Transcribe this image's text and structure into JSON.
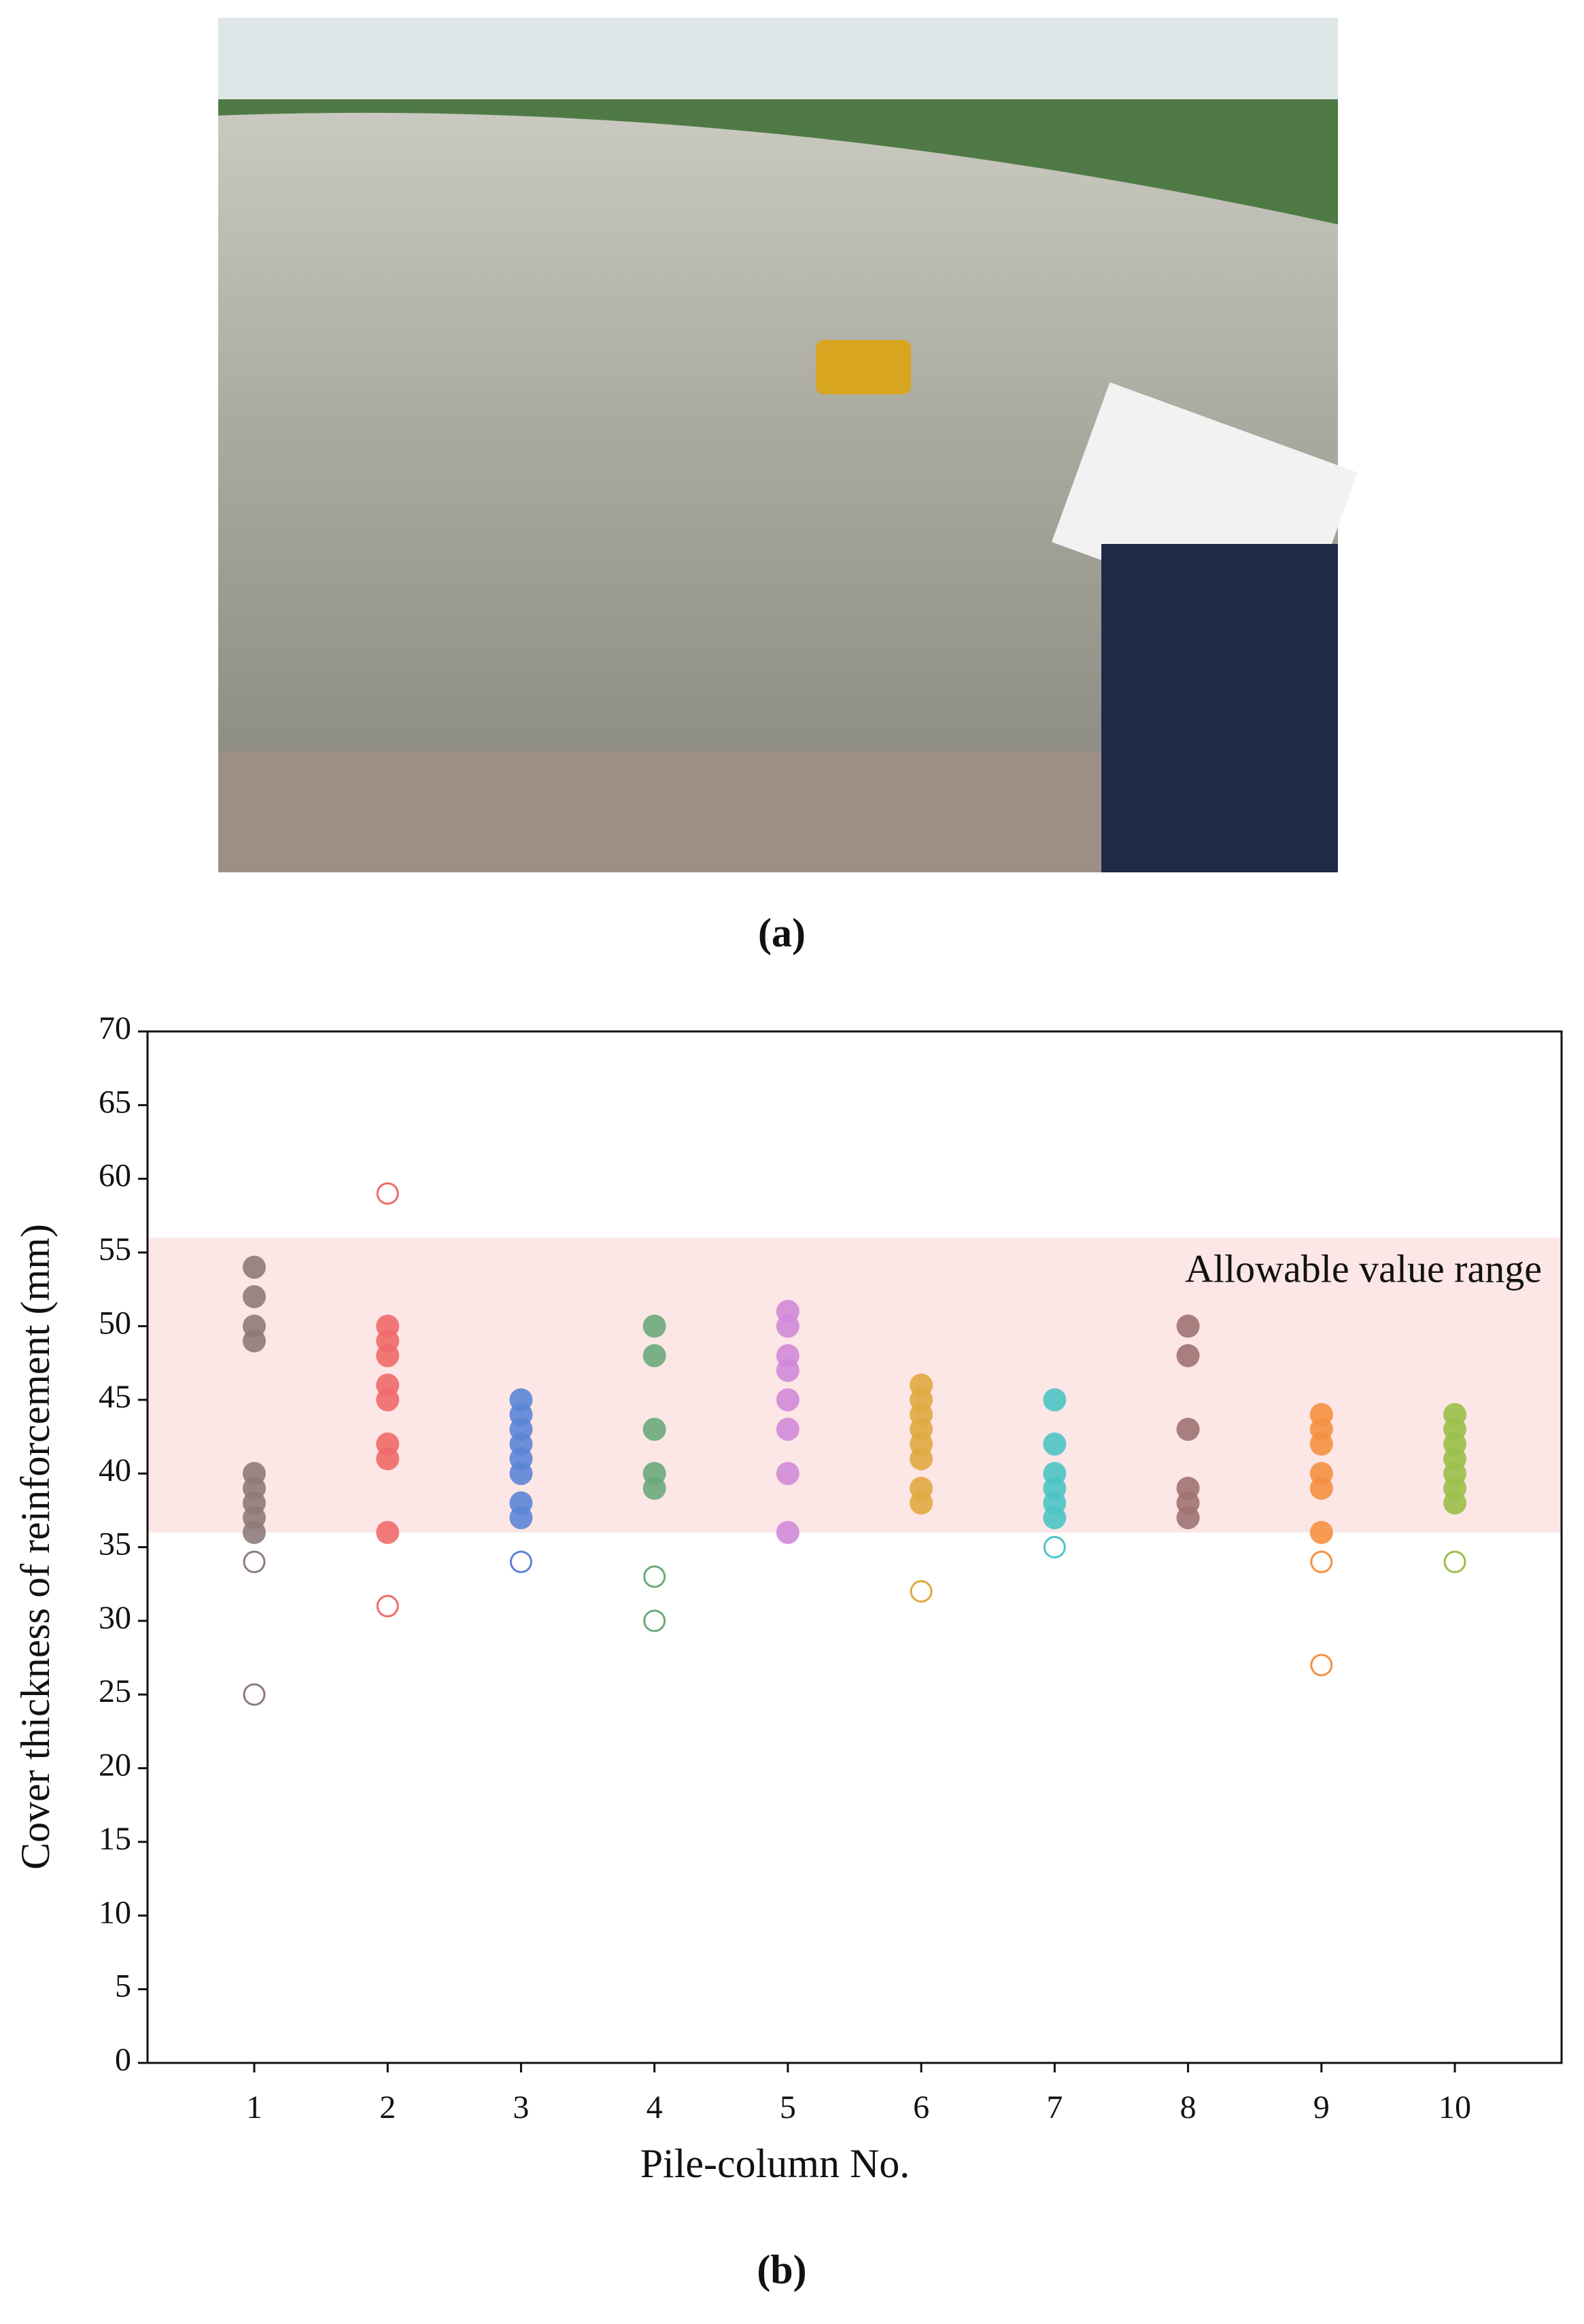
{
  "panel_a": {
    "caption": "(a)"
  },
  "chart_data": {
    "type": "scatter",
    "caption": "(b)",
    "xlabel": "Pile-column No.",
    "ylabel": "Cover thickness of reinforcement (mm)",
    "annotation": "Allowable value range",
    "band": [
      36,
      56
    ],
    "band_color": "#fde6e6",
    "xlim": [
      0.2,
      10.8
    ],
    "xticks": [
      1,
      2,
      3,
      4,
      5,
      6,
      7,
      8,
      9,
      10
    ],
    "ylim": [
      0,
      70
    ],
    "yticks": [
      0,
      5,
      10,
      15,
      20,
      25,
      30,
      35,
      40,
      45,
      50,
      55,
      60,
      65,
      70
    ],
    "series": [
      {
        "x": 1,
        "color": "#8f7a7a",
        "values": [
          54,
          52,
          50,
          49,
          40,
          39,
          38,
          37,
          36
        ],
        "outliers": [
          34,
          25
        ]
      },
      {
        "x": 2,
        "color": "#ef6a6a",
        "values": [
          50,
          49,
          48,
          46,
          45,
          42,
          41,
          36
        ],
        "outliers": [
          59,
          31
        ]
      },
      {
        "x": 3,
        "color": "#5b85d6",
        "values": [
          45,
          44,
          43,
          42,
          41,
          40,
          38,
          37
        ],
        "outliers": [
          34
        ]
      },
      {
        "x": 4,
        "color": "#6aaa7a",
        "values": [
          50,
          48,
          43,
          40,
          39
        ],
        "outliers": [
          33,
          30
        ]
      },
      {
        "x": 5,
        "color": "#d08ad8",
        "values": [
          51,
          50,
          48,
          47,
          45,
          43,
          40,
          36
        ],
        "outliers": []
      },
      {
        "x": 6,
        "color": "#e0a840",
        "values": [
          46,
          45,
          44,
          43,
          42,
          41,
          39,
          38
        ],
        "outliers": [
          32
        ]
      },
      {
        "x": 7,
        "color": "#4cc4c4",
        "values": [
          45,
          42,
          40,
          39,
          38,
          37
        ],
        "outliers": [
          35
        ]
      },
      {
        "x": 8,
        "color": "#a07272",
        "values": [
          50,
          48,
          43,
          39,
          38,
          37
        ],
        "outliers": []
      },
      {
        "x": 9,
        "color": "#f59040",
        "values": [
          44,
          43,
          42,
          40,
          39,
          36
        ],
        "outliers": [
          34,
          27
        ]
      },
      {
        "x": 10,
        "color": "#9cbf4a",
        "values": [
          44,
          43,
          42,
          41,
          40,
          39,
          38
        ],
        "outliers": [
          34
        ]
      }
    ]
  }
}
